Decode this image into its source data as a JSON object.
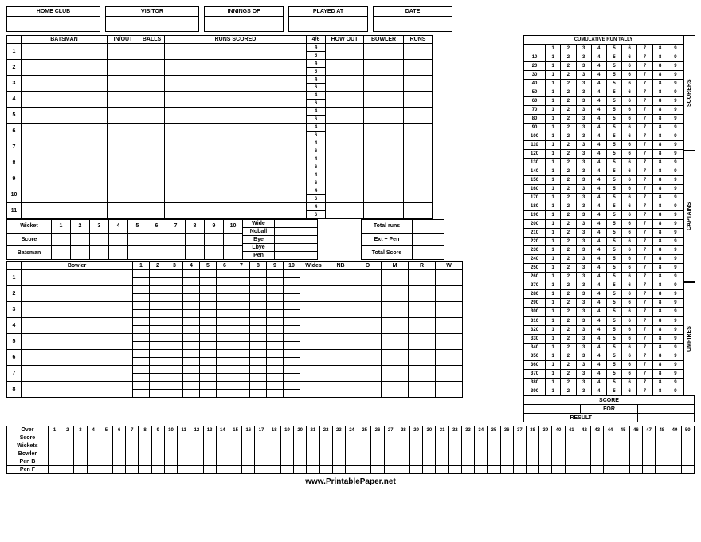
{
  "header": {
    "home_club": "HOME CLUB",
    "visitor": "VISITOR",
    "innings_of": "INNINGS OF",
    "played_at": "PLAYED AT",
    "date": "DATE"
  },
  "batsman": {
    "title": "BATSMAN",
    "in_out": "IN/OUT",
    "balls": "BALLS",
    "runs_scored": "RUNS SCORED",
    "four_six": "4/6",
    "how_out": "HOW OUT",
    "bowler": "BOWLER",
    "runs": "RUNS",
    "rows": [
      "1",
      "2",
      "3",
      "4",
      "5",
      "6",
      "7",
      "8",
      "9",
      "10",
      "11"
    ],
    "sub4": "4",
    "sub6": "6"
  },
  "wicket": {
    "wicket": "Wicket",
    "score": "Score",
    "batsman": "Batsman",
    "nums": [
      "1",
      "2",
      "3",
      "4",
      "5",
      "6",
      "7",
      "8",
      "9",
      "10"
    ]
  },
  "extras": {
    "wide": "Wide",
    "noball": "Noball",
    "bye": "Bye",
    "lbye": "Lbye",
    "pen": "Pen"
  },
  "totals": {
    "total_runs": "Total runs",
    "ext_pen": "Ext + Pen",
    "total_score": "Total Score"
  },
  "bowler": {
    "title": "Bowler",
    "overs": [
      "1",
      "2",
      "3",
      "4",
      "5",
      "6",
      "7",
      "8",
      "9",
      "10"
    ],
    "wides": "Wides",
    "nb": "NB",
    "o": "O",
    "m": "M",
    "r": "R",
    "w": "W",
    "rows": [
      "1",
      "2",
      "3",
      "4",
      "5",
      "6",
      "7",
      "8"
    ]
  },
  "tally": {
    "title": "CUMULATIVE RUN TALLY",
    "digits": [
      "1",
      "2",
      "3",
      "4",
      "5",
      "6",
      "7",
      "8",
      "9"
    ],
    "rows": [
      "10",
      "20",
      "30",
      "40",
      "50",
      "60",
      "70",
      "80",
      "90",
      "100",
      "110",
      "120",
      "130",
      "140",
      "150",
      "160",
      "170",
      "180",
      "190",
      "200",
      "210",
      "220",
      "230",
      "240",
      "250",
      "260",
      "270",
      "280",
      "290",
      "300",
      "310",
      "320",
      "330",
      "340",
      "350",
      "360",
      "370",
      "380",
      "390"
    ]
  },
  "sides": {
    "scorers": "SCORERS",
    "captains": "CAPTAINS",
    "umpires": "UMPIRES"
  },
  "scorebox": {
    "score": "SCORE",
    "for": "FOR",
    "result": "RESULT"
  },
  "overs": {
    "over": "Over",
    "score": "Score",
    "wickets": "Wickets",
    "bowler": "Bowler",
    "pen_b": "Pen B",
    "pen_f": "Pen F",
    "nums": [
      "1",
      "2",
      "3",
      "4",
      "5",
      "6",
      "7",
      "8",
      "9",
      "10",
      "11",
      "12",
      "13",
      "14",
      "15",
      "16",
      "17",
      "18",
      "19",
      "20",
      "21",
      "22",
      "23",
      "24",
      "25",
      "26",
      "27",
      "28",
      "29",
      "30",
      "31",
      "32",
      "33",
      "34",
      "35",
      "36",
      "37",
      "38",
      "39",
      "40",
      "41",
      "42",
      "43",
      "44",
      "45",
      "46",
      "47",
      "48",
      "49",
      "50"
    ]
  },
  "footer": "www.PrintablePaper.net"
}
